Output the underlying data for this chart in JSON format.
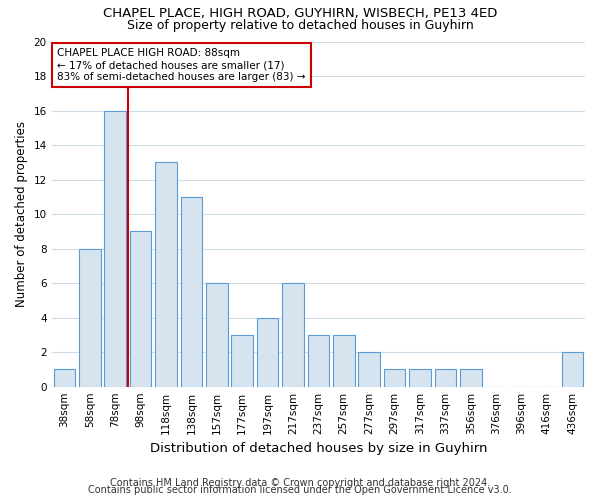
{
  "title1": "CHAPEL PLACE, HIGH ROAD, GUYHIRN, WISBECH, PE13 4ED",
  "title2": "Size of property relative to detached houses in Guyhirn",
  "xlabel": "Distribution of detached houses by size in Guyhirn",
  "ylabel": "Number of detached properties",
  "categories": [
    "38sqm",
    "58sqm",
    "78sqm",
    "98sqm",
    "118sqm",
    "138sqm",
    "157sqm",
    "177sqm",
    "197sqm",
    "217sqm",
    "237sqm",
    "257sqm",
    "277sqm",
    "297sqm",
    "317sqm",
    "337sqm",
    "356sqm",
    "376sqm",
    "396sqm",
    "416sqm",
    "436sqm"
  ],
  "values": [
    1,
    8,
    16,
    9,
    13,
    11,
    6,
    3,
    4,
    6,
    3,
    3,
    2,
    1,
    1,
    1,
    1,
    0,
    0,
    0,
    2
  ],
  "bar_color": "#d6e4f0",
  "bar_edge_color": "#5b9bd5",
  "highlight_index": 2,
  "highlight_line_color": "#cc0000",
  "annotation_text": "CHAPEL PLACE HIGH ROAD: 88sqm\n← 17% of detached houses are smaller (17)\n83% of semi-detached houses are larger (83) →",
  "annotation_box_color": "#ffffff",
  "annotation_box_edge": "#cc0000",
  "ylim": [
    0,
    20
  ],
  "yticks": [
    0,
    2,
    4,
    6,
    8,
    10,
    12,
    14,
    16,
    18,
    20
  ],
  "footer1": "Contains HM Land Registry data © Crown copyright and database right 2024.",
  "footer2": "Contains public sector information licensed under the Open Government Licence v3.0.",
  "bg_color": "#ffffff",
  "plot_bg_color": "#ffffff",
  "title1_fontsize": 9.5,
  "title2_fontsize": 9,
  "xlabel_fontsize": 9.5,
  "ylabel_fontsize": 8.5,
  "tick_fontsize": 7.5,
  "footer_fontsize": 7
}
